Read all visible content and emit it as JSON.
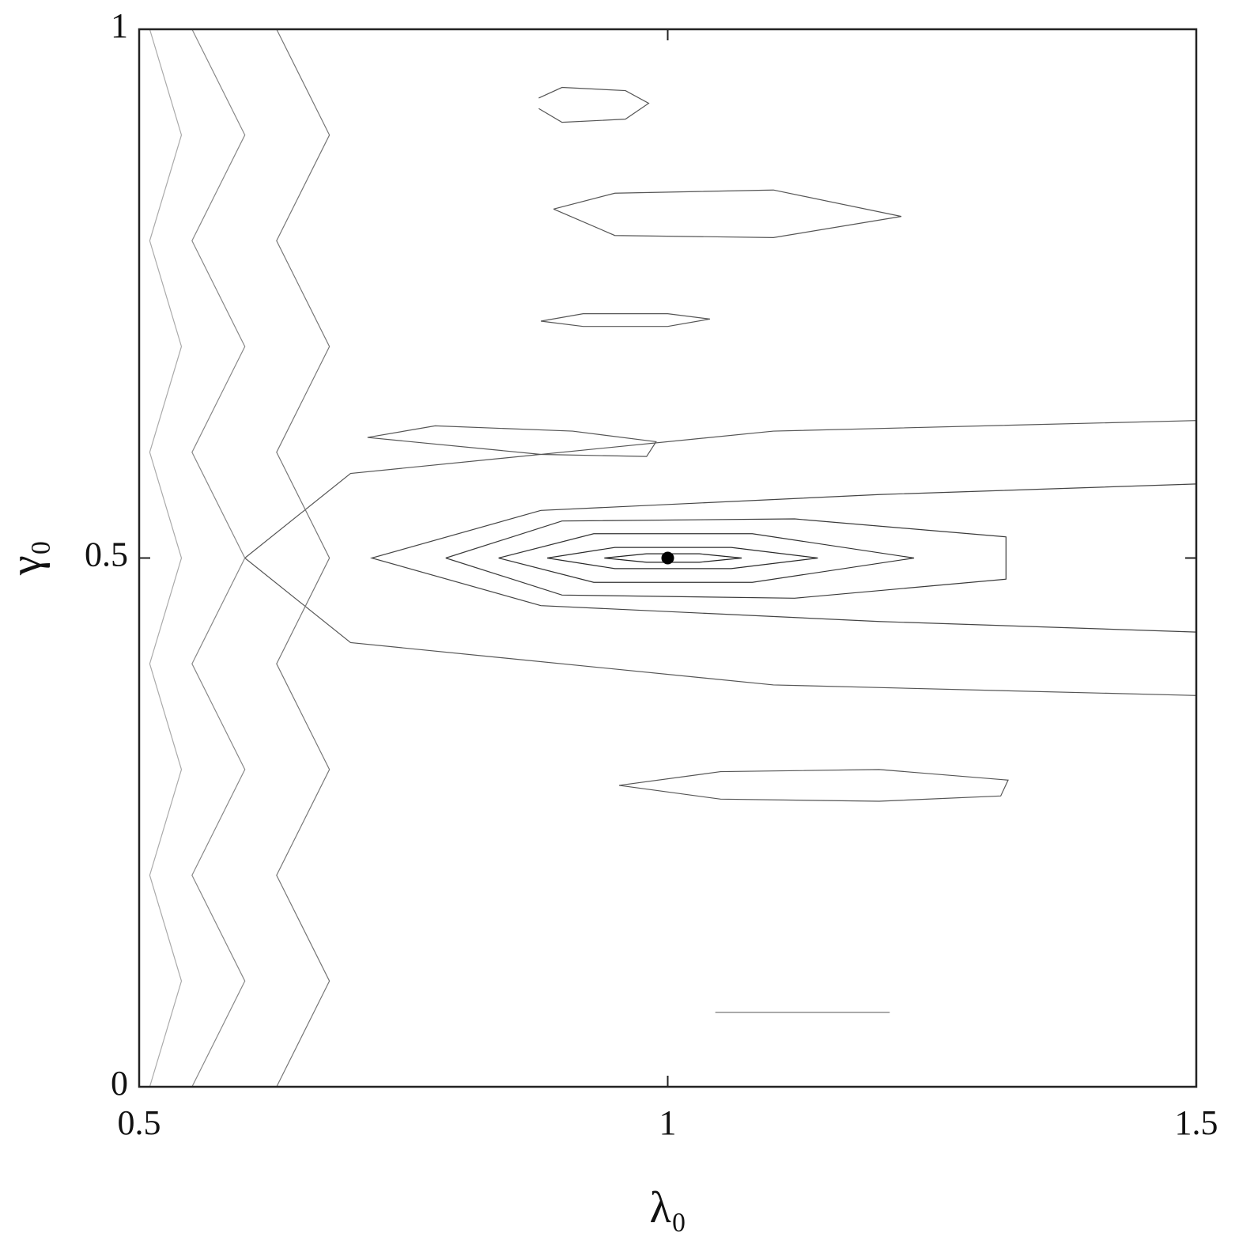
{
  "chart_data": {
    "type": "contour",
    "x_label": "λ₀",
    "y_label": "γ₀",
    "xlim": [
      0.5,
      1.5
    ],
    "xticks": [
      0.5,
      1,
      1.5
    ],
    "ylim": [
      0,
      1
    ],
    "yticks": [
      0,
      0.5,
      1
    ],
    "series": [
      {
        "color": "#222222",
        "x": [
          0.94,
          0.98,
          1.03,
          1.07,
          1.03,
          0.98,
          0.94
        ],
        "y": [
          0.5,
          0.504,
          0.504,
          0.5,
          0.496,
          0.496,
          0.5
        ]
      },
      {
        "color": "#2a2a2a",
        "x": [
          0.886,
          0.95,
          1.06,
          1.142,
          1.06,
          0.95,
          0.886
        ],
        "y": [
          0.5,
          0.51,
          0.51,
          0.5,
          0.49,
          0.49,
          0.5
        ]
      },
      {
        "color": "#333333",
        "x": [
          0.84,
          0.93,
          1.08,
          1.233,
          1.08,
          0.93,
          0.84
        ],
        "y": [
          0.5,
          0.523,
          0.523,
          0.5,
          0.477,
          0.477,
          0.5
        ]
      },
      {
        "color": "#3a3a3a",
        "x": [
          0.79,
          0.9,
          1.12,
          1.32,
          1.32,
          1.12,
          0.9,
          0.79
        ],
        "y": [
          0.5,
          0.535,
          0.537,
          0.52,
          0.48,
          0.462,
          0.465,
          0.5
        ]
      },
      {
        "color": "#555555",
        "x": [
          0.954,
          1.05,
          1.2,
          1.322,
          1.315,
          1.2,
          1.05,
          0.954
        ],
        "y": [
          0.285,
          0.298,
          0.3,
          0.29,
          0.275,
          0.27,
          0.272,
          0.285
        ]
      },
      {
        "color": "#555555",
        "x": [
          0.892,
          0.95,
          1.1,
          1.221,
          1.1,
          0.95,
          0.892
        ],
        "y": [
          0.83,
          0.845,
          0.848,
          0.823,
          0.803,
          0.805,
          0.83
        ]
      },
      {
        "color": "#555555",
        "x": [
          0.88,
          0.92,
          1.0,
          1.04,
          1.0,
          0.92,
          0.88
        ],
        "y": [
          0.724,
          0.731,
          0.731,
          0.726,
          0.719,
          0.719,
          0.724
        ]
      },
      {
        "color": "#555555",
        "x": [
          0.716,
          0.78,
          0.91,
          0.989,
          0.98,
          0.88,
          0.716
        ],
        "y": [
          0.614,
          0.625,
          0.62,
          0.61,
          0.596,
          0.598,
          0.614
        ]
      },
      {
        "color": "#555555",
        "x": [
          0.878,
          0.9,
          0.96,
          0.982,
          0.96,
          0.9,
          0.878
        ],
        "y": [
          0.935,
          0.945,
          0.942,
          0.93,
          0.915,
          0.912,
          0.925
        ]
      },
      {
        "color": "#777777",
        "x": [
          1.045,
          1.21
        ],
        "y": [
          0.0703,
          0.0703
        ]
      },
      {
        "color": "#444444",
        "x": [
          1.5,
          1.2,
          0.88,
          0.72,
          0.88,
          1.2,
          1.5
        ],
        "y": [
          0.57,
          0.56,
          0.545,
          0.5,
          0.455,
          0.44,
          0.43
        ]
      },
      {
        "color": "#555555",
        "x": [
          1.5,
          1.1,
          0.7,
          0.6,
          0.7,
          1.1,
          1.5
        ],
        "y": [
          0.63,
          0.62,
          0.58,
          0.5,
          0.42,
          0.38,
          0.37
        ]
      },
      {
        "color": "#888888",
        "x": [
          0.55,
          0.6,
          0.55,
          0.6,
          0.55,
          0.6,
          0.55,
          0.6,
          0.55,
          0.6,
          0.55
        ],
        "y": [
          0,
          0.1,
          0.2,
          0.3,
          0.4,
          0.5,
          0.6,
          0.7,
          0.8,
          0.9,
          1
        ]
      },
      {
        "color": "#777777",
        "x": [
          0.63,
          0.68,
          0.63,
          0.68,
          0.63,
          0.68,
          0.63,
          0.68,
          0.63,
          0.68,
          0.63
        ],
        "y": [
          0,
          0.1,
          0.2,
          0.3,
          0.4,
          0.5,
          0.6,
          0.7,
          0.8,
          0.9,
          1
        ]
      },
      {
        "color": "#aaaaaa",
        "x": [
          0.51,
          0.54,
          0.51,
          0.54,
          0.51,
          0.54,
          0.51,
          0.54,
          0.51,
          0.54,
          0.51
        ],
        "y": [
          0,
          0.1,
          0.2,
          0.3,
          0.4,
          0.5,
          0.6,
          0.7,
          0.8,
          0.9,
          1
        ]
      }
    ],
    "point": {
      "x": 1,
      "y": 0.5,
      "color": "#000000"
    }
  }
}
